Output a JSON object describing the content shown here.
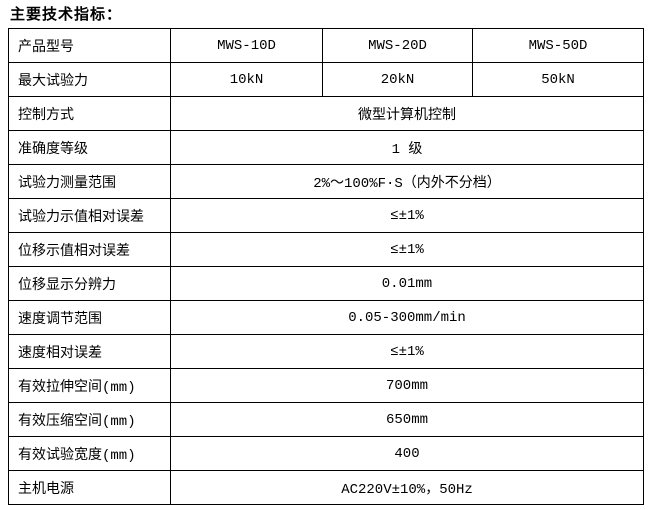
{
  "title": "主要技术指标：",
  "table": {
    "rows": [
      {
        "label": "产品型号",
        "values": [
          "MWS-10D",
          "MWS-20D",
          "MWS-50D"
        ]
      },
      {
        "label": "最大试验力",
        "values": [
          "10kN",
          "20kN",
          "50kN"
        ]
      },
      {
        "label": "控制方式",
        "value": "微型计算机控制"
      },
      {
        "label": "准确度等级",
        "value": "1 级"
      },
      {
        "label": "试验力测量范围",
        "value": "2%～100%F·S（内外不分档）"
      },
      {
        "label": "试验力示值相对误差",
        "value": "≤±1%"
      },
      {
        "label": "位移示值相对误差",
        "value": "≤±1%"
      },
      {
        "label": "位移显示分辨力",
        "value": "0.01mm"
      },
      {
        "label": "速度调节范围",
        "value": "0.05-300mm/min"
      },
      {
        "label": "速度相对误差",
        "value": "≤±1%"
      },
      {
        "label": "有效拉伸空间(mm)",
        "value": "700mm"
      },
      {
        "label": "有效压缩空间(mm)",
        "value": "650mm"
      },
      {
        "label": "有效试验宽度(mm)",
        "value": "400"
      },
      {
        "label": "主机电源",
        "value": "AC220V±10%，50Hz"
      }
    ]
  }
}
